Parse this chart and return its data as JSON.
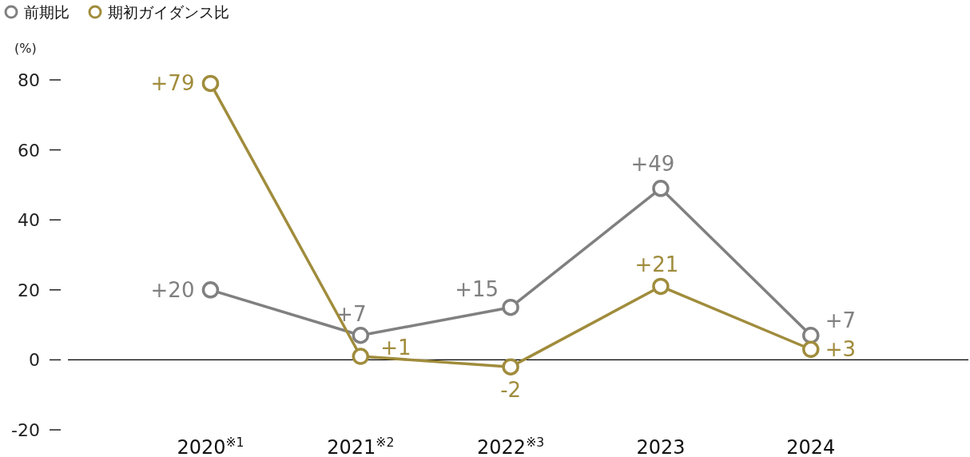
{
  "chart_data": {
    "type": "line",
    "ylabel": "(%)",
    "categories": [
      "2020$^{※1}$",
      "2021$^{※2}$",
      "2022$^{※3}$",
      "2023",
      "2024"
    ],
    "ylim": [
      -20,
      80
    ],
    "yticks": [
      -20,
      0,
      20,
      40,
      60,
      80
    ],
    "ref_lines": [
      {
        "axis": "y",
        "value": 0,
        "color": "#000000"
      }
    ],
    "grid": false,
    "legend": "top left",
    "marker": "circle",
    "line_style": "solid",
    "series": [
      {
        "name": "前期比",
        "color": "#808080",
        "values": [
          20,
          7,
          15,
          49,
          7
        ],
        "value_labels": [
          "+20",
          "+7",
          "+15",
          "+49",
          "+7"
        ]
      },
      {
        "name": "期初ガイダンス比",
        "color": "#a08c3c",
        "values": [
          79,
          1,
          -2,
          21,
          3
        ],
        "value_labels": [
          "+79",
          "+1",
          "-2",
          "+21",
          "+3"
        ]
      }
    ]
  }
}
